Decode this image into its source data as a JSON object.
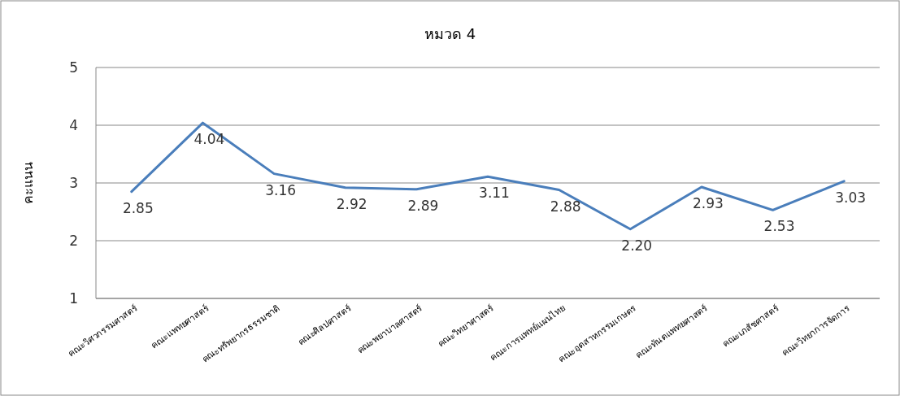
{
  "chart_data": {
    "type": "line",
    "title": "หมวด 4",
    "ylabel": "คะแนน",
    "categories": [
      "คณะวิศวกรรมศาสตร์",
      "คณะแพทยศาสตร์",
      "คณะทรัพยากรธรรมชาติ",
      "คณะศิลปศาสตร์",
      "คณะพยาบาลศาสตร์",
      "คณะวิทยาศาสตร์",
      "คณะการแพทย์แผนไทย",
      "คณะอุตสาหกรรมเกษตร",
      "คณะทันตแพทยศาสตร์",
      "คณะเภสัชศาสตร์",
      "คณะวิทยาการจัดการ"
    ],
    "series": [
      {
        "color": "#4a7ebb",
        "values": [
          2.85,
          4.04,
          3.16,
          2.92,
          2.89,
          3.11,
          2.88,
          2.2,
          2.93,
          2.53,
          3.03
        ],
        "value_labels": [
          "2.85",
          "4.04",
          "3.16",
          "2.92",
          "2.89",
          "3.11",
          "2.88",
          "2.20",
          "2.93",
          "2.53",
          "3.03"
        ]
      }
    ],
    "ylim": [
      1,
      5
    ],
    "yticks": [
      1,
      2,
      3,
      4,
      5
    ],
    "grid": "y",
    "marker": "none",
    "line_style": "solid"
  }
}
